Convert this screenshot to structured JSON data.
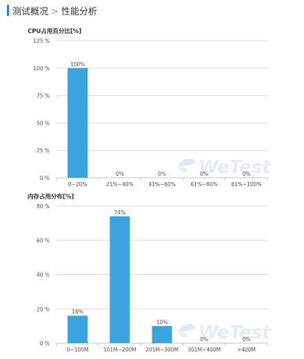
{
  "header": {
    "section": "测试概况",
    "separator": ">",
    "page": "性能分析"
  },
  "watermark": "WeTest",
  "chart_data": [
    {
      "type": "bar",
      "title": "CPU占用百分比[%]",
      "categories": [
        "0~20%",
        "21%~40%",
        "41%~60%",
        "61%~80%",
        "81%~100%"
      ],
      "values": [
        100,
        0,
        0,
        0,
        0
      ],
      "value_labels": [
        "100%",
        "0%",
        "0%",
        "0%",
        "0%"
      ],
      "yticks": [
        0,
        25,
        50,
        75,
        100,
        125
      ],
      "ytick_labels": [
        "0 %",
        "25 %",
        "50 %",
        "75 %",
        "100 %",
        "125 %"
      ],
      "ylim": [
        0,
        125
      ],
      "grid": true,
      "bar_color": "#3aa3e0"
    },
    {
      "type": "bar",
      "title": "内存占用分布[%]",
      "categories": [
        "0~100M",
        "101M~200M",
        "201M~300M",
        "301M~400M",
        ">400M"
      ],
      "values": [
        16,
        74,
        10,
        0,
        0
      ],
      "value_labels": [
        "16%",
        "74%",
        "10%",
        "0%",
        "0%"
      ],
      "yticks": [
        0,
        20,
        40,
        60,
        80
      ],
      "ytick_labels": [
        "0 %",
        "20 %",
        "40 %",
        "60 %",
        "80 %"
      ],
      "ylim": [
        0,
        80
      ],
      "grid": true,
      "bar_color": "#3aa3e0"
    }
  ]
}
